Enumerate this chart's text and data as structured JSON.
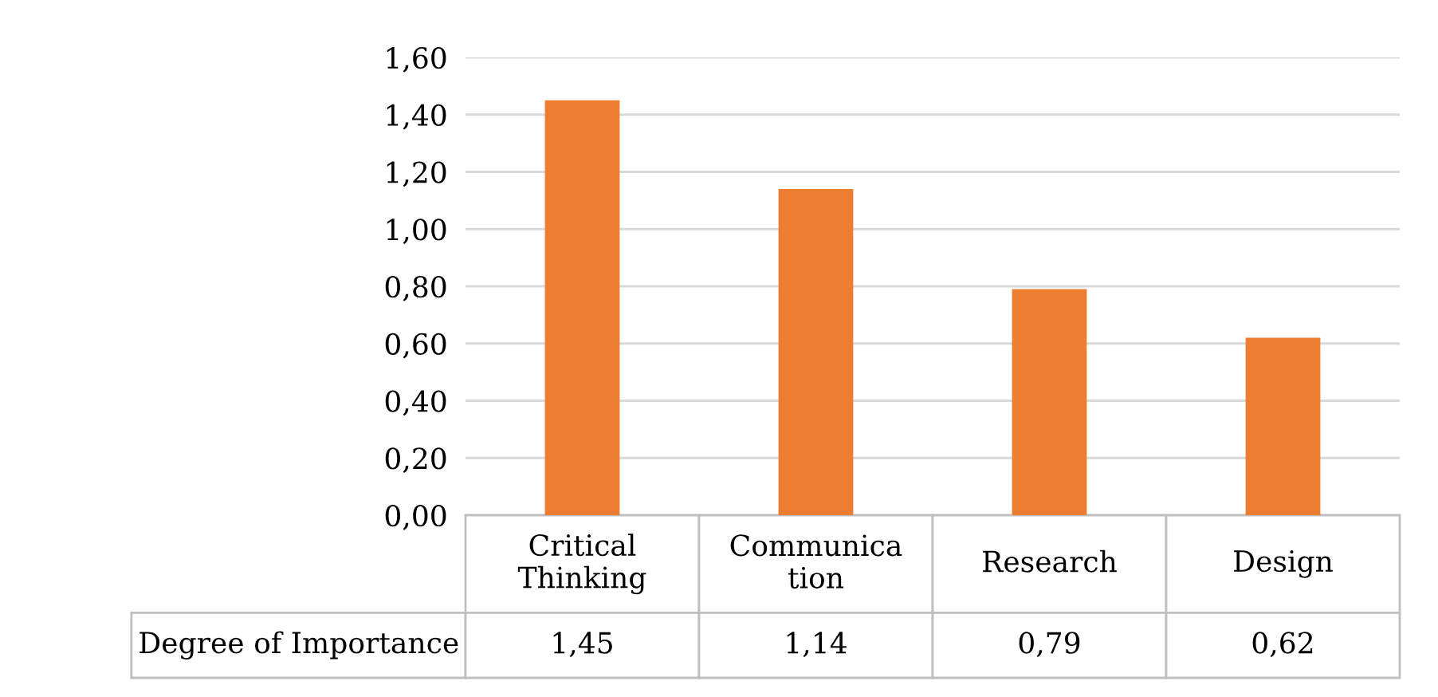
{
  "chart_data": {
    "type": "bar",
    "categories": [
      "Critical\nThinking",
      "Communica\ntion",
      "Research",
      "Design"
    ],
    "series": [
      {
        "name": "Degree of Importance",
        "color": "#ed7d31",
        "values": [
          1.45,
          1.14,
          0.79,
          0.62
        ],
        "value_labels": [
          "1,45",
          "1,14",
          "0,79",
          "0,62"
        ]
      }
    ],
    "ylim": [
      0,
      1.6
    ],
    "yticks": [
      {
        "value": 0,
        "label": "0,00"
      },
      {
        "value": 0.2,
        "label": "0,20"
      },
      {
        "value": 0.4,
        "label": "0,40"
      },
      {
        "value": 0.6,
        "label": "0,60"
      },
      {
        "value": 0.8,
        "label": "0,80"
      },
      {
        "value": 1.0,
        "label": "1,00"
      },
      {
        "value": 1.2,
        "label": "1,20"
      },
      {
        "value": 1.4,
        "label": "1,40"
      },
      {
        "value": 1.6,
        "label": "1,60"
      }
    ],
    "grid": "y",
    "legend": false
  }
}
